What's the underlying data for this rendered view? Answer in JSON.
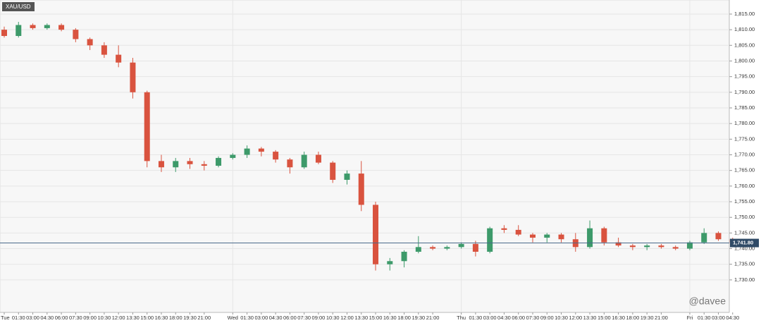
{
  "chart_data": {
    "type": "candlestick",
    "title": "XAU/USD",
    "categories": [
      "Tue",
      "01:30",
      "03:00",
      "04:30",
      "06:00",
      "07:30",
      "09:00",
      "10:30",
      "12:00",
      "13:30",
      "15:00",
      "16:30",
      "18:00",
      "19:30",
      "21:00",
      null,
      "Wed",
      "01:30",
      "03:00",
      "04:30",
      "06:00",
      "07:30",
      "09:00",
      "10:30",
      "12:00",
      "13:30",
      "15:00",
      "16:30",
      "18:00",
      "19:30",
      "21:00",
      null,
      "Thu",
      "01:30",
      "03:00",
      "04:30",
      "06:00",
      "07:30",
      "09:00",
      "10:30",
      "12:00",
      "13:30",
      "15:00",
      "16:30",
      "18:00",
      "19:30",
      "21:00",
      null,
      "Fri",
      "01:30",
      "03:00",
      "04:30"
    ],
    "open": [
      1810,
      1808,
      1811.5,
      1810.5,
      1811.5,
      1810,
      1807,
      1805,
      1802,
      1799.5,
      1790,
      1768,
      1766,
      1768,
      1767,
      1766.5,
      1769,
      1770,
      1772,
      1771,
      1768.5,
      1766,
      1770,
      1767.5,
      1762,
      1764,
      1754,
      1735,
      1736,
      1739,
      1740.5,
      1740,
      1740.5,
      1741.5,
      1739,
      1746.5,
      1746,
      1744.5,
      1743.5,
      1744.5,
      1743,
      1740.5,
      1746.5,
      1742,
      1741,
      1740.5,
      1741,
      1740.5,
      1740,
      1742,
      1745,
      1743
    ],
    "high": [
      1811,
      1812.5,
      1812,
      1812,
      1812,
      1810.5,
      1807.5,
      1806,
      1805,
      1801,
      1790.5,
      1770,
      1769,
      1769,
      1768,
      1769.5,
      1770.5,
      1773,
      1772.5,
      1771.5,
      1769,
      1771,
      1771,
      1768,
      1765,
      1768,
      1755,
      1737,
      1739.5,
      1744,
      1741,
      1741,
      1742,
      1742.5,
      1747,
      1747.5,
      1747.5,
      1745,
      1745,
      1745,
      1745,
      1749,
      1747,
      1743.5,
      1741.5,
      1741.5,
      1741.5,
      1741,
      1742.5,
      1746.5,
      1745.5,
      1743.5
    ],
    "low": [
      1807.5,
      1807.5,
      1810,
      1810,
      1809.5,
      1806,
      1803.5,
      1801,
      1798,
      1788,
      1766,
      1764.5,
      1764.5,
      1765.5,
      1765,
      1766,
      1768.5,
      1769,
      1769.5,
      1767.5,
      1764,
      1765.5,
      1767,
      1761,
      1760.5,
      1752,
      1733,
      1733,
      1734,
      1738.5,
      1739.5,
      1739.5,
      1740,
      1737.5,
      1738.5,
      1745,
      1744,
      1742,
      1742,
      1742,
      1739,
      1740,
      1741,
      1740.5,
      1739.5,
      1739.5,
      1740,
      1739.5,
      1739.5,
      1741.5,
      1742.5,
      1741.5
    ],
    "close": [
      1808,
      1811.5,
      1810.5,
      1811.5,
      1810,
      1807,
      1805,
      1802,
      1799.5,
      1790,
      1768,
      1766,
      1768,
      1767,
      1766.5,
      1769,
      1770,
      1772,
      1771,
      1768.5,
      1766,
      1770,
      1767.5,
      1762,
      1764,
      1754,
      1735,
      1736,
      1739,
      1740.5,
      1740,
      1740.5,
      1741.5,
      1739,
      1746.5,
      1746,
      1744.5,
      1743.5,
      1744.5,
      1743,
      1740.5,
      1746.5,
      1742,
      1741,
      1740.5,
      1741,
      1740.5,
      1740,
      1742,
      1745,
      1743,
      1741.8
    ],
    "up_color": "#3d9a6a",
    "down_color": "#d9533f",
    "ylim": [
      1719.6,
      1819.5
    ],
    "yticks": [
      {
        "value": 1730,
        "label": "1,730.00"
      },
      {
        "value": 1735,
        "label": "1,735.00"
      },
      {
        "value": 1740,
        "label": "1,740.00"
      },
      {
        "value": 1745,
        "label": "1,745.00"
      },
      {
        "value": 1750,
        "label": "1,750.00"
      },
      {
        "value": 1755,
        "label": "1,755.00"
      },
      {
        "value": 1760,
        "label": "1,760.00"
      },
      {
        "value": 1765,
        "label": "1,765.00"
      },
      {
        "value": 1770,
        "label": "1,770.00"
      },
      {
        "value": 1775,
        "label": "1,775.00"
      },
      {
        "value": 1780,
        "label": "1,780.00"
      },
      {
        "value": 1785,
        "label": "1,785.00"
      },
      {
        "value": 1790,
        "label": "1,790.00"
      },
      {
        "value": 1795,
        "label": "1,795.00"
      },
      {
        "value": 1800,
        "label": "1,800.00"
      },
      {
        "value": 1805,
        "label": "1,805.00"
      },
      {
        "value": 1810,
        "label": "1,810.00"
      },
      {
        "value": 1815,
        "label": "1,815.00"
      }
    ],
    "grid": true,
    "current_price": {
      "value": 1741.8,
      "label": "1,741.80"
    },
    "watermark": "@davee"
  }
}
